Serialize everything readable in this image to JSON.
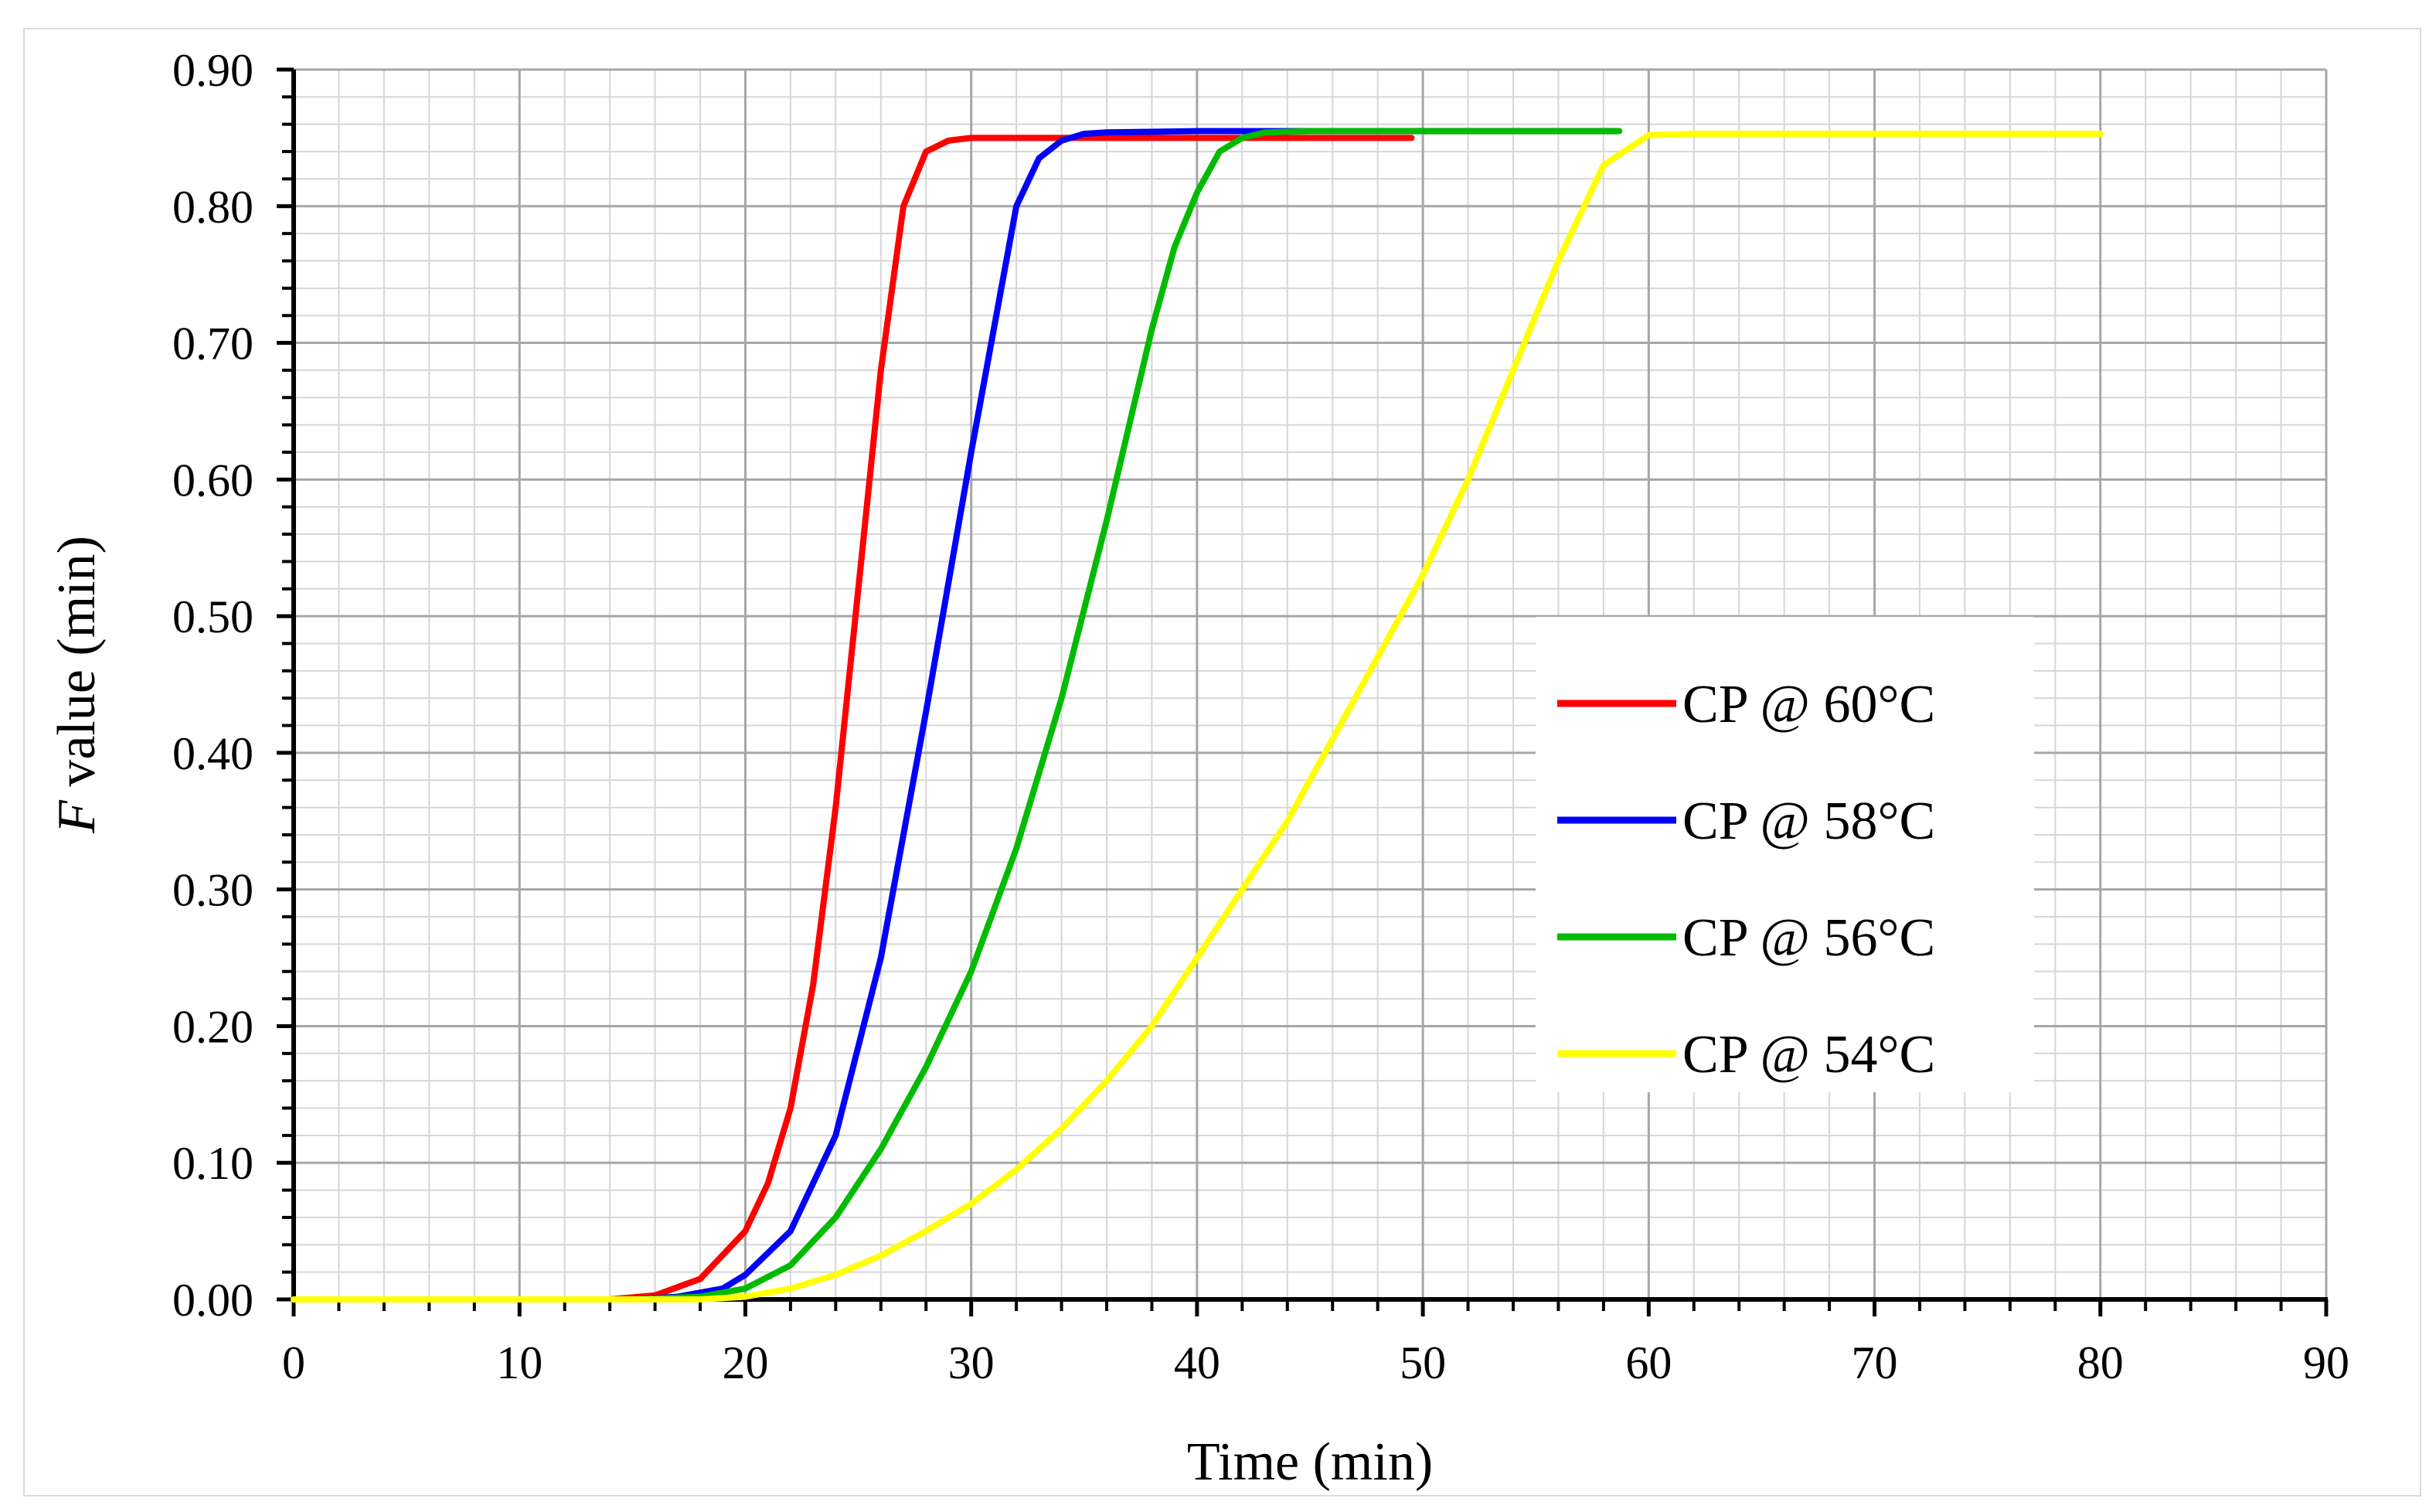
{
  "chart_data": {
    "type": "line",
    "title": "",
    "xlabel": "Time (min)",
    "ylabel_italic": "F",
    "ylabel_rest": " value (min)",
    "xlim": [
      0,
      90
    ],
    "ylim": [
      0,
      0.9
    ],
    "x_major_step": 10,
    "y_major_step": 0.1,
    "x_minor_per_major": 5,
    "y_minor_per_major": 5,
    "x_tick_labels": [
      "0",
      "10",
      "20",
      "30",
      "40",
      "50",
      "60",
      "70",
      "80",
      "90"
    ],
    "y_tick_labels": [
      "0.00",
      "0.10",
      "0.20",
      "0.30",
      "0.40",
      "0.50",
      "0.60",
      "0.70",
      "0.80",
      "0.90"
    ],
    "grid": true,
    "legend_position": "center-right",
    "series": [
      {
        "name": "CP @ 60°C",
        "color": "#ff0000",
        "points": [
          [
            0,
            0
          ],
          [
            14,
            0
          ],
          [
            16,
            0.003
          ],
          [
            18,
            0.015
          ],
          [
            20,
            0.05
          ],
          [
            21,
            0.085
          ],
          [
            22,
            0.14
          ],
          [
            23,
            0.23
          ],
          [
            24,
            0.36
          ],
          [
            25,
            0.52
          ],
          [
            26,
            0.68
          ],
          [
            27,
            0.8
          ],
          [
            28,
            0.84
          ],
          [
            29,
            0.848
          ],
          [
            30,
            0.85
          ],
          [
            35,
            0.85
          ],
          [
            40,
            0.85
          ],
          [
            45,
            0.85
          ],
          [
            49.5,
            0.85
          ]
        ]
      },
      {
        "name": "CP @ 58°C",
        "color": "#0000ff",
        "points": [
          [
            0,
            0
          ],
          [
            15,
            0
          ],
          [
            17,
            0.002
          ],
          [
            19,
            0.008
          ],
          [
            20,
            0.018
          ],
          [
            22,
            0.05
          ],
          [
            24,
            0.12
          ],
          [
            26,
            0.25
          ],
          [
            28,
            0.43
          ],
          [
            30,
            0.62
          ],
          [
            32,
            0.8
          ],
          [
            33,
            0.835
          ],
          [
            34,
            0.848
          ],
          [
            35,
            0.853
          ],
          [
            36,
            0.854
          ],
          [
            40,
            0.855
          ],
          [
            45,
            0.855
          ],
          [
            50,
            0.855
          ],
          [
            55,
            0.855
          ],
          [
            58.5,
            0.855
          ]
        ]
      },
      {
        "name": "CP @ 56°C",
        "color": "#00bb00",
        "points": [
          [
            0,
            0
          ],
          [
            15,
            0
          ],
          [
            18,
            0.002
          ],
          [
            20,
            0.008
          ],
          [
            22,
            0.025
          ],
          [
            24,
            0.06
          ],
          [
            26,
            0.11
          ],
          [
            28,
            0.17
          ],
          [
            30,
            0.24
          ],
          [
            32,
            0.33
          ],
          [
            34,
            0.44
          ],
          [
            36,
            0.57
          ],
          [
            38,
            0.71
          ],
          [
            39,
            0.77
          ],
          [
            40,
            0.81
          ],
          [
            41,
            0.84
          ],
          [
            42,
            0.85
          ],
          [
            43,
            0.854
          ],
          [
            45,
            0.855
          ],
          [
            50,
            0.855
          ],
          [
            55,
            0.855
          ],
          [
            58.7,
            0.855
          ]
        ]
      },
      {
        "name": "CP @ 54°C",
        "color": "#ffff00",
        "points": [
          [
            0,
            0
          ],
          [
            18,
            0
          ],
          [
            20,
            0.002
          ],
          [
            22,
            0.008
          ],
          [
            24,
            0.018
          ],
          [
            26,
            0.032
          ],
          [
            28,
            0.05
          ],
          [
            30,
            0.07
          ],
          [
            32,
            0.095
          ],
          [
            34,
            0.125
          ],
          [
            36,
            0.16
          ],
          [
            38,
            0.2
          ],
          [
            40,
            0.25
          ],
          [
            42,
            0.3
          ],
          [
            44,
            0.35
          ],
          [
            46,
            0.41
          ],
          [
            48,
            0.47
          ],
          [
            50,
            0.53
          ],
          [
            52,
            0.6
          ],
          [
            54,
            0.68
          ],
          [
            56,
            0.76
          ],
          [
            58,
            0.83
          ],
          [
            60,
            0.852
          ],
          [
            62,
            0.853
          ],
          [
            65,
            0.853
          ],
          [
            70,
            0.853
          ],
          [
            75,
            0.853
          ],
          [
            80,
            0.853
          ]
        ]
      }
    ]
  }
}
